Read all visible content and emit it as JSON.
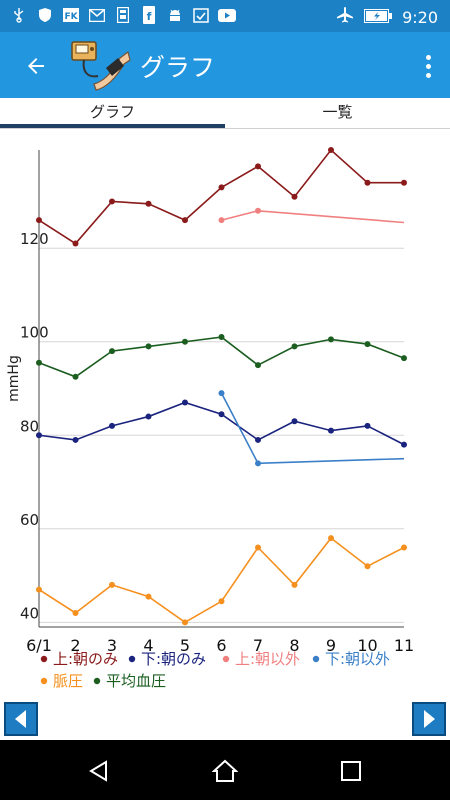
{
  "status_bar": {
    "time": "9:20",
    "left_icons": [
      "usb-icon",
      "shield-icon",
      "fk-app-icon",
      "gmail-icon",
      "phone-app-icon",
      "facebook-icon",
      "android-icon",
      "check-calendar-icon",
      "youtube-icon"
    ],
    "right_icons": [
      "airplane-mode-icon",
      "battery-charging-icon"
    ],
    "color": "#1d81c6"
  },
  "app_bar": {
    "title": "グラフ",
    "color": "#2396e0"
  },
  "tabs": [
    {
      "label": "グラフ",
      "active": true
    },
    {
      "label": "一覧",
      "active": false
    }
  ],
  "chart_data": {
    "type": "line",
    "ylabel": "mmHg",
    "ylim": [
      39,
      141
    ],
    "yticks": [
      40,
      60,
      80,
      100,
      120
    ],
    "x": [
      "6/1",
      "2",
      "3",
      "4",
      "5",
      "6",
      "7",
      "8",
      "9",
      "10",
      "11"
    ],
    "grid": true,
    "legend_position": "bottom",
    "series": [
      {
        "name": "上:朝のみ",
        "color": "#8b1a1a",
        "values": [
          126,
          121,
          130,
          129.5,
          126,
          133,
          137.5,
          131,
          141,
          134,
          134
        ]
      },
      {
        "name": "下:朝のみ",
        "color": "#1a237e",
        "values": [
          80,
          79,
          82,
          84,
          87,
          84.5,
          79,
          83,
          81,
          82,
          78
        ]
      },
      {
        "name": "上:朝以外",
        "color": "#f08080",
        "values": [
          null,
          null,
          null,
          null,
          null,
          126,
          128,
          null,
          null,
          null,
          125.5
        ]
      },
      {
        "name": "下:朝以外",
        "color": "#3a7fc8",
        "values": [
          null,
          null,
          null,
          null,
          null,
          89,
          74,
          null,
          null,
          null,
          75
        ]
      },
      {
        "name": "脈圧",
        "color": "#f5901e",
        "values": [
          47,
          42,
          48,
          45.5,
          40,
          44.5,
          56,
          48,
          58,
          52,
          56
        ]
      },
      {
        "name": "平均血圧",
        "color": "#1b5e20",
        "values": [
          95.5,
          92.5,
          98,
          99,
          100,
          101,
          95,
          99,
          100.5,
          99.5,
          96.5
        ]
      }
    ]
  },
  "nav": {
    "prev": "previous-page",
    "next": "next-page"
  }
}
